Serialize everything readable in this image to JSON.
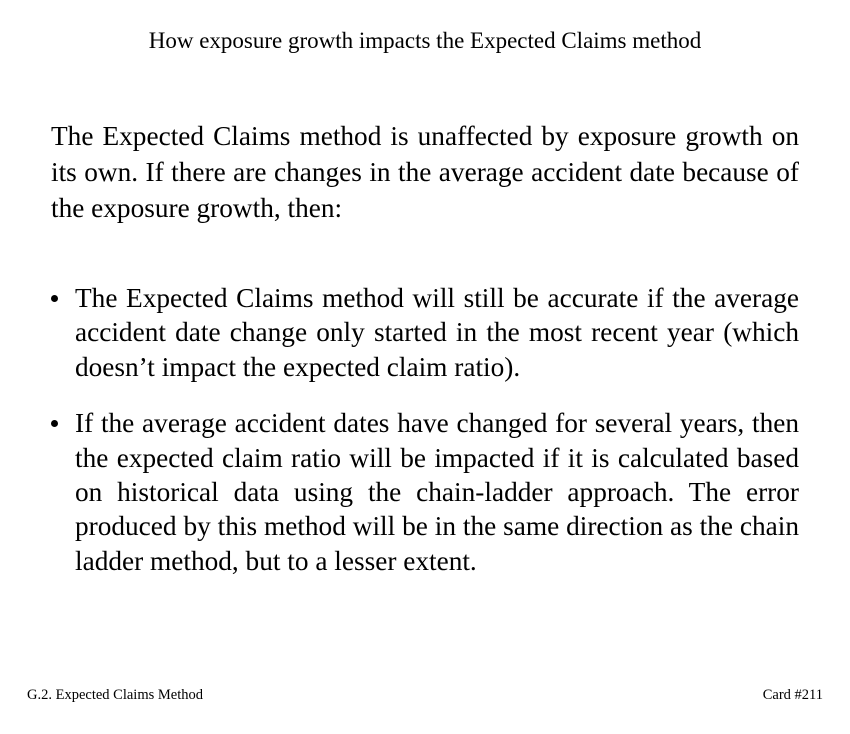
{
  "card": {
    "title": "How exposure growth impacts the Expected Claims method",
    "intro": "The Expected Claims method is unaffected by exposure growth on its own.  If there are changes in the average accident date because of the exposure growth, then:",
    "bullets": [
      "The Expected Claims method will still be accurate if the average accident date change only started in the most recent year (which doesn’t impact the expected claim ratio).",
      "If the average accident dates have changed for several years, then the expected claim ratio will be impacted if it is calculated based on historical data using the chain-ladder approach. The error produced by this method will be in the same direction as the chain ladder method, but to a lesser extent."
    ]
  },
  "footer": {
    "section": "G.2. Expected Claims Method",
    "card_number": "Card #211"
  }
}
